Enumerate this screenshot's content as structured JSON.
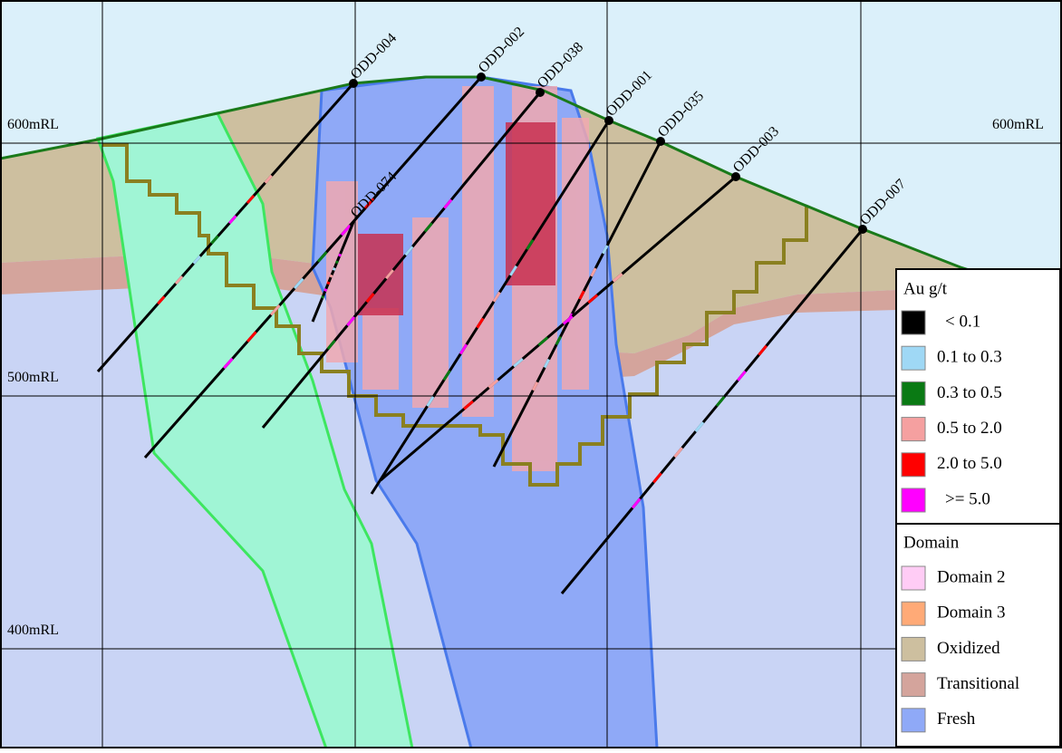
{
  "elevation_labels": {
    "left": [
      "600mRL",
      "500mRL",
      "400mRL"
    ],
    "right": [
      "600mRL"
    ]
  },
  "drill_holes": [
    "ODD-004",
    "ODD-002",
    "ODD-038",
    "ODD-001",
    "ODD-035",
    "ODD-003",
    "ODD-007",
    "ODD-074"
  ],
  "legend": {
    "grade": {
      "title": "Au g/t",
      "items": [
        {
          "label": "< 0.1",
          "color": "#000000"
        },
        {
          "label": "0.1 to 0.3",
          "color": "#9fd8f5"
        },
        {
          "label": "0.3 to 0.5",
          "color": "#0a7a14"
        },
        {
          "label": "0.5 to 2.0",
          "color": "#f5a0a0"
        },
        {
          "label": "2.0 to 5.0",
          "color": "#ff0000"
        },
        {
          "label": ">= 5.0",
          "color": "#ff00ff"
        }
      ]
    },
    "domain": {
      "title": "Domain",
      "items": [
        {
          "label": "Domain 2",
          "color": "#ffccf5"
        },
        {
          "label": "Domain 3",
          "color": "#ffaa77"
        },
        {
          "label": "Oxidized",
          "color": "#cdbf9f"
        },
        {
          "label": "Transitional",
          "color": "#d4a49c"
        },
        {
          "label": "Fresh",
          "color": "#8fa9f7"
        }
      ]
    }
  }
}
